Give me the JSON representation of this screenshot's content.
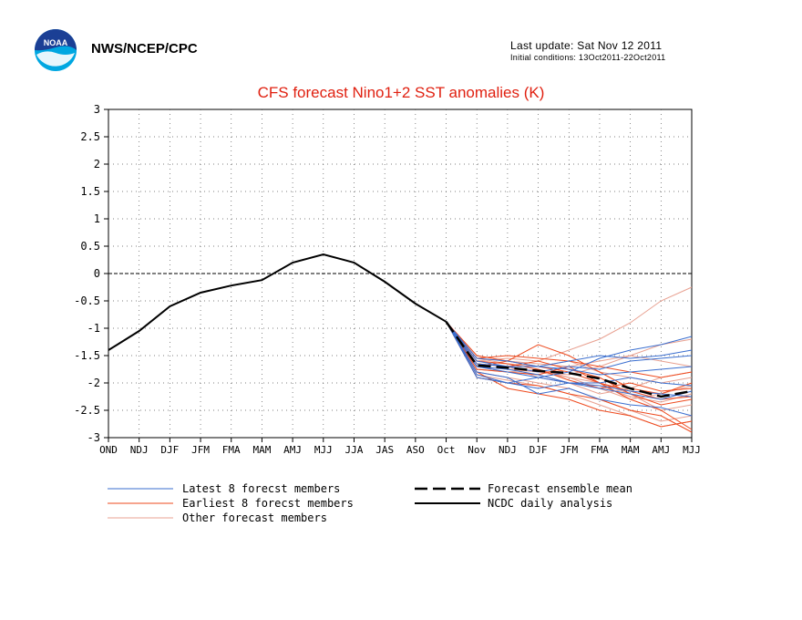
{
  "header": {
    "agency": "NWS/NCEP/CPC",
    "last_update": "Last update: Sat Nov 12 2011",
    "initial_conditions": "Initial conditions: 13Oct2011-22Oct2011",
    "logo_text": "NOAA"
  },
  "chart_data": {
    "type": "line",
    "title": "CFS forecast Nino1+2 SST anomalies (K)",
    "xlabel": "",
    "ylabel": "",
    "categories": [
      "OND",
      "NDJ",
      "DJF",
      "JFM",
      "FMA",
      "MAM",
      "AMJ",
      "MJJ",
      "JJA",
      "JAS",
      "ASO",
      "Oct",
      "Nov",
      "NDJ",
      "DJF",
      "JFM",
      "FMA",
      "MAM",
      "AMJ",
      "MJJ"
    ],
    "yticks": [
      "3",
      "2.5",
      "2",
      "1.5",
      "1",
      "0.5",
      "0",
      "-0.5",
      "-1",
      "-1.5",
      "-2",
      "-2.5",
      "-3"
    ],
    "ylim": [
      -3,
      3
    ],
    "grid": true,
    "zero_line": true,
    "legend": {
      "placement": "bottom",
      "latest": "Latest 8 forecst members",
      "earliest": "Earliest 8 forecst members",
      "other": "Other forecast members",
      "mean": "Forecast ensemble mean",
      "analysis": "NCDC daily analysis"
    },
    "colors": {
      "latest": "#3a6ecf",
      "earliest": "#ee4a1e",
      "other": "#e8a090",
      "analysis": "#000000",
      "mean": "#000000",
      "title": "#e02010"
    },
    "analysis": [
      -1.4,
      -1.05,
      -0.6,
      -0.35,
      -0.22,
      -0.12,
      0.2,
      0.35,
      0.2,
      -0.15,
      -0.55,
      -0.88
    ],
    "ensemble_mean": [
      -0.88,
      -1.68,
      -1.72,
      -1.78,
      -1.82,
      -1.92,
      -2.1,
      -2.25,
      -2.15
    ],
    "latest_members": [
      [
        -0.88,
        -1.7,
        -1.8,
        -1.9,
        -2.0,
        -2.1,
        -2.2,
        -2.3,
        -2.15
      ],
      [
        -0.88,
        -1.9,
        -2.0,
        -1.9,
        -1.8,
        -1.55,
        -1.4,
        -1.3,
        -1.15
      ],
      [
        -0.88,
        -1.65,
        -1.7,
        -1.8,
        -1.7,
        -1.75,
        -1.6,
        -1.55,
        -1.5
      ],
      [
        -0.88,
        -1.85,
        -2.0,
        -2.1,
        -2.0,
        -2.05,
        -2.15,
        -2.2,
        -2.25
      ],
      [
        -0.88,
        -1.55,
        -1.6,
        -1.7,
        -1.6,
        -1.5,
        -1.55,
        -1.5,
        -1.4
      ],
      [
        -0.88,
        -1.8,
        -1.9,
        -2.2,
        -2.1,
        -2.3,
        -2.4,
        -2.45,
        -2.6
      ],
      [
        -0.88,
        -1.7,
        -1.75,
        -1.85,
        -2.0,
        -2.0,
        -1.9,
        -2.0,
        -2.05
      ],
      [
        -0.88,
        -1.6,
        -1.7,
        -1.7,
        -1.75,
        -1.85,
        -1.8,
        -1.75,
        -1.7
      ]
    ],
    "earliest_members": [
      [
        -0.88,
        -1.5,
        -1.6,
        -1.3,
        -1.5,
        -1.8,
        -2.1,
        -2.2,
        -2.0
      ],
      [
        -0.88,
        -1.8,
        -2.1,
        -2.2,
        -2.3,
        -2.5,
        -2.6,
        -2.8,
        -2.7
      ],
      [
        -0.88,
        -1.65,
        -1.7,
        -1.6,
        -1.75,
        -1.9,
        -2.2,
        -2.4,
        -2.3
      ],
      [
        -0.88,
        -1.75,
        -1.8,
        -1.85,
        -1.7,
        -2.0,
        -2.3,
        -2.5,
        -2.85
      ],
      [
        -0.88,
        -1.55,
        -1.5,
        -1.55,
        -1.6,
        -1.7,
        -1.8,
        -1.9,
        -1.8
      ],
      [
        -0.88,
        -1.9,
        -2.0,
        -2.05,
        -2.2,
        -2.3,
        -2.5,
        -2.6,
        -2.9
      ],
      [
        -0.88,
        -1.7,
        -1.6,
        -1.7,
        -1.8,
        -2.0,
        -2.15,
        -2.3,
        -2.25
      ],
      [
        -0.88,
        -1.6,
        -1.65,
        -1.75,
        -1.95,
        -2.1,
        -2.0,
        -2.15,
        -2.1
      ]
    ],
    "other_members": [
      [
        -0.88,
        -1.6,
        -1.55,
        -1.6,
        -1.4,
        -1.2,
        -0.9,
        -0.5,
        -0.25
      ],
      [
        -0.88,
        -1.7,
        -1.75,
        -1.8,
        -1.85,
        -1.7,
        -1.5,
        -1.3,
        -1.2
      ],
      [
        -0.88,
        -1.8,
        -1.9,
        -2.0,
        -2.1,
        -2.3,
        -2.5,
        -2.7,
        -2.6
      ],
      [
        -0.88,
        -1.65,
        -1.7,
        -1.9,
        -2.0,
        -2.2,
        -2.1,
        -1.9,
        -1.8
      ],
      [
        -0.88,
        -1.75,
        -1.8,
        -1.75,
        -1.9,
        -2.0,
        -2.2,
        -2.5,
        -2.4
      ],
      [
        -0.88,
        -1.55,
        -1.65,
        -1.7,
        -1.6,
        -1.8,
        -1.9,
        -2.0,
        -1.9
      ],
      [
        -0.88,
        -1.85,
        -1.95,
        -2.05,
        -2.2,
        -2.4,
        -2.6,
        -2.8,
        -2.7
      ],
      [
        -0.88,
        -1.7,
        -1.8,
        -1.85,
        -2.0,
        -2.05,
        -2.25,
        -2.35,
        -2.2
      ],
      [
        -0.88,
        -1.6,
        -1.7,
        -1.8,
        -1.9,
        -2.1,
        -2.3,
        -2.2,
        -2.05
      ],
      [
        -0.88,
        -1.5,
        -1.6,
        -1.65,
        -1.7,
        -1.6,
        -1.5,
        -1.6,
        -1.7
      ]
    ]
  }
}
